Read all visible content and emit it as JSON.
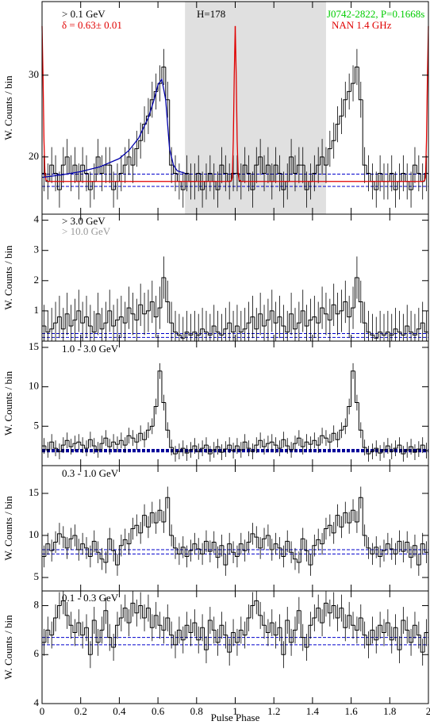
{
  "chart_data": [
    {
      "type": "histogram",
      "ylabel": "W. Counts / bin",
      "xlim": [
        0,
        2
      ],
      "ylim": [
        13,
        39
      ],
      "yticks": [
        20,
        30
      ],
      "xticks": [
        0,
        0.2,
        0.4,
        0.6,
        0.8,
        1,
        1.2,
        1.4,
        1.6,
        1.8,
        2
      ],
      "annotations": [
        {
          "text": "> 0.1 GeV",
          "color": "#000000"
        },
        {
          "text": "δ = 0.63± 0.01",
          "color": "#e00000"
        },
        {
          "text": "H=178",
          "color": "#000000"
        },
        {
          "text": "J0742-2822, P=0.1668s",
          "color": "#00cc00"
        },
        {
          "text": "NAN 1.4 GHz",
          "color": "#e00000"
        }
      ],
      "shaded_region": [
        0.74,
        1.47
      ],
      "color": "#000000",
      "error": 2.2,
      "background_levels": [
        17.9,
        16.4
      ],
      "background_color": "#0000cc",
      "bins": [
        0,
        0.02,
        0.04,
        0.06,
        0.08,
        0.1,
        0.12,
        0.14,
        0.16,
        0.18,
        0.2,
        0.22,
        0.24,
        0.26,
        0.28,
        0.3,
        0.32,
        0.34,
        0.36,
        0.38,
        0.4,
        0.42,
        0.44,
        0.46,
        0.48,
        0.5,
        0.52,
        0.54,
        0.56,
        0.58,
        0.6,
        0.62,
        0.64,
        0.66,
        0.68,
        0.7,
        0.72,
        0.74,
        0.76,
        0.78,
        0.8,
        0.82,
        0.84,
        0.86,
        0.88,
        0.9,
        0.92,
        0.94,
        0.96,
        0.98,
        1
      ],
      "values": [
        18,
        17,
        19,
        18,
        16,
        19,
        20,
        18,
        19,
        17,
        19,
        18,
        16,
        17,
        20,
        18,
        19,
        19,
        16,
        17,
        18,
        19,
        20,
        19,
        21,
        22,
        24,
        25,
        27,
        28,
        29,
        31,
        27,
        19,
        18,
        17,
        16,
        18,
        17,
        17,
        18,
        16,
        17,
        18,
        17,
        16,
        19,
        18,
        17,
        18
      ],
      "radio": {
        "color": "#e00000",
        "x": [
          0,
          0.005,
          0.01,
          0.015,
          0.02,
          0.03,
          0.97,
          0.98,
          0.985,
          0.99,
          0.995,
          1
        ],
        "values": [
          36,
          30,
          22,
          18,
          17.2,
          17,
          17,
          17.1,
          17.5,
          22,
          30,
          36
        ]
      },
      "fit": {
        "color": "#0000aa",
        "x": [
          0,
          0.1,
          0.2,
          0.3,
          0.4,
          0.45,
          0.5,
          0.55,
          0.58,
          0.6,
          0.62,
          0.64,
          0.65,
          0.66,
          0.68,
          0.7,
          0.74
        ],
        "values": [
          17.5,
          17.8,
          18.2,
          18.8,
          19.8,
          20.8,
          22.3,
          24.8,
          27,
          28.8,
          29.5,
          27,
          24,
          21,
          19,
          18.3,
          18
        ]
      }
    },
    {
      "type": "histogram",
      "ylabel": "W. Counts / bin",
      "xlim": [
        0,
        2
      ],
      "ylim": [
        0,
        4.2
      ],
      "yticks": [
        1,
        2,
        3,
        4
      ],
      "xticks": [
        0,
        0.2,
        0.4,
        0.6,
        0.8,
        1,
        1.2,
        1.4,
        1.6,
        1.8,
        2
      ],
      "annotations": [
        {
          "text": "> 3.0 GeV",
          "color": "#000000"
        },
        {
          "text": "> 10.0 GeV",
          "color": "#999999"
        }
      ],
      "color": "#000000",
      "error": 0.7,
      "background_levels": [
        0.25,
        0.12
      ],
      "background_color": "#0000cc",
      "bins": [
        0,
        0.02,
        0.04,
        0.06,
        0.08,
        0.1,
        0.12,
        0.14,
        0.16,
        0.18,
        0.2,
        0.22,
        0.24,
        0.26,
        0.28,
        0.3,
        0.32,
        0.34,
        0.36,
        0.38,
        0.4,
        0.42,
        0.44,
        0.46,
        0.48,
        0.5,
        0.52,
        0.54,
        0.56,
        0.58,
        0.6,
        0.62,
        0.64,
        0.66,
        0.68,
        0.7,
        0.72,
        0.74,
        0.76,
        0.78,
        0.8,
        0.82,
        0.84,
        0.86,
        0.88,
        0.9,
        0.92,
        0.94,
        0.96,
        0.98,
        1
      ],
      "values": [
        0.5,
        0.3,
        0.4,
        0.6,
        0.8,
        0.4,
        0.9,
        0.5,
        0.7,
        1.0,
        0.6,
        0.8,
        0.5,
        0.3,
        0.9,
        0.4,
        0.6,
        1.0,
        0.5,
        0.7,
        0.8,
        0.6,
        1.1,
        0.9,
        0.7,
        1.2,
        0.9,
        1.0,
        1.3,
        0.8,
        1.1,
        2.1,
        1.3,
        0.6,
        0.3,
        0.2,
        0.1,
        0.3,
        0.2,
        0.3,
        0.2,
        0.4,
        0.3,
        0.2,
        0.5,
        0.3,
        0.2,
        0.4,
        0.6,
        0.3
      ]
    },
    {
      "type": "histogram",
      "ylabel": "W. Counts / bin",
      "xlim": [
        0,
        2
      ],
      "ylim": [
        0,
        15.8
      ],
      "yticks": [
        5,
        10,
        15
      ],
      "xticks": [
        0,
        0.2,
        0.4,
        0.6,
        0.8,
        1,
        1.2,
        1.4,
        1.6,
        1.8,
        2
      ],
      "annotations": [
        {
          "text": "1.0 - 3.0 GeV",
          "color": "#000000"
        }
      ],
      "color": "#000000",
      "error": 1.0,
      "background_levels": [
        2.0,
        1.8
      ],
      "background_color": "#000099",
      "bins": [
        0,
        0.02,
        0.04,
        0.06,
        0.08,
        0.1,
        0.12,
        0.14,
        0.16,
        0.18,
        0.2,
        0.22,
        0.24,
        0.26,
        0.28,
        0.3,
        0.32,
        0.34,
        0.36,
        0.38,
        0.4,
        0.42,
        0.44,
        0.46,
        0.48,
        0.5,
        0.52,
        0.54,
        0.56,
        0.58,
        0.6,
        0.62,
        0.64,
        0.66,
        0.68,
        0.7,
        0.72,
        0.74,
        0.76,
        0.78,
        0.8,
        0.82,
        0.84,
        0.86,
        0.88,
        0.9,
        0.92,
        0.94,
        0.96,
        0.98,
        1
      ],
      "values": [
        2.5,
        2.0,
        3.0,
        2.2,
        1.8,
        2.6,
        3.2,
        2.4,
        2.8,
        3.0,
        2.6,
        2.2,
        3.3,
        2.5,
        2.0,
        2.8,
        3.5,
        2.4,
        3.0,
        2.7,
        3.2,
        2.6,
        3.8,
        3.5,
        3.0,
        4.1,
        3.3,
        4.5,
        5.0,
        7.5,
        12.0,
        8.0,
        4.5,
        2.3,
        1.5,
        1.8,
        2.2,
        1.6,
        2.0,
        2.5,
        1.8,
        2.2,
        2.6,
        1.5,
        2.0,
        2.4,
        1.7,
        2.1,
        2.6,
        1.9
      ]
    },
    {
      "type": "histogram",
      "ylabel": "W. Counts / bin",
      "xlim": [
        0,
        2
      ],
      "ylim": [
        3.4,
        18.3
      ],
      "yticks": [
        5,
        10,
        15
      ],
      "xticks": [
        0,
        0.2,
        0.4,
        0.6,
        0.8,
        1,
        1.2,
        1.4,
        1.6,
        1.8,
        2
      ],
      "annotations": [
        {
          "text": "0.3 - 1.0 GeV",
          "color": "#000000"
        }
      ],
      "color": "#000000",
      "error": 1.3,
      "background_levels": [
        8.3,
        7.8
      ],
      "background_color": "#0000cc",
      "bins": [
        0,
        0.02,
        0.04,
        0.06,
        0.08,
        0.1,
        0.12,
        0.14,
        0.16,
        0.18,
        0.2,
        0.22,
        0.24,
        0.26,
        0.28,
        0.3,
        0.32,
        0.34,
        0.36,
        0.38,
        0.4,
        0.42,
        0.44,
        0.46,
        0.48,
        0.5,
        0.52,
        0.54,
        0.56,
        0.58,
        0.6,
        0.62,
        0.64,
        0.66,
        0.68,
        0.7,
        0.72,
        0.74,
        0.76,
        0.78,
        0.8,
        0.82,
        0.84,
        0.86,
        0.88,
        0.9,
        0.92,
        0.94,
        0.96,
        0.98,
        1
      ],
      "values": [
        7.5,
        9.0,
        8.2,
        9.2,
        10.2,
        9.8,
        8.5,
        9.6,
        10.0,
        8.3,
        9.0,
        8.5,
        7.5,
        9.3,
        8.0,
        7.2,
        6.8,
        9.6,
        8.2,
        6.5,
        8.8,
        9.5,
        9.0,
        10.8,
        11.2,
        10.3,
        12.4,
        11.0,
        12.7,
        11.5,
        13.0,
        11.6,
        14.5,
        10.0,
        8.5,
        7.8,
        8.6,
        7.5,
        8.2,
        9.0,
        8.4,
        7.8,
        9.3,
        8.1,
        9.2,
        7.4,
        8.8,
        6.5,
        9.0,
        8.0
      ]
    },
    {
      "type": "histogram",
      "ylabel": "W. Counts / bin",
      "xlabel": "Pulse Phase",
      "xlim": [
        0,
        2
      ],
      "ylim": [
        4,
        8.6
      ],
      "yticks": [
        4,
        6,
        8
      ],
      "xticks": [
        0,
        0.2,
        0.4,
        0.6,
        0.8,
        1,
        1.2,
        1.4,
        1.6,
        1.8,
        2
      ],
      "annotations": [
        {
          "text": "0.1 - 0.3 GeV",
          "color": "#000000"
        }
      ],
      "color": "#000000",
      "error": 0.55,
      "background_levels": [
        6.7,
        6.4
      ],
      "background_color": "#0000cc",
      "bins": [
        0,
        0.02,
        0.04,
        0.06,
        0.08,
        0.1,
        0.12,
        0.14,
        0.16,
        0.18,
        0.2,
        0.22,
        0.24,
        0.26,
        0.28,
        0.3,
        0.32,
        0.34,
        0.36,
        0.38,
        0.4,
        0.42,
        0.44,
        0.46,
        0.48,
        0.5,
        0.52,
        0.54,
        0.56,
        0.58,
        0.6,
        0.62,
        0.64,
        0.66,
        0.68,
        0.7,
        0.72,
        0.74,
        0.76,
        0.78,
        0.8,
        0.82,
        0.84,
        0.86,
        0.88,
        0.9,
        0.92,
        0.94,
        0.96,
        0.98,
        1
      ],
      "values": [
        6.5,
        7.0,
        6.8,
        7.5,
        8.0,
        8.2,
        7.6,
        7.2,
        6.9,
        7.3,
        6.8,
        7.1,
        6.0,
        7.4,
        6.5,
        7.0,
        7.8,
        6.7,
        6.3,
        7.2,
        7.5,
        7.9,
        7.3,
        8.1,
        7.7,
        8.0,
        7.5,
        7.9,
        7.1,
        7.6,
        7.2,
        7.0,
        7.5,
        6.8,
        6.4,
        7.0,
        6.6,
        7.2,
        6.9,
        7.3,
        6.6,
        7.1,
        6.2,
        7.4,
        7.0,
        6.5,
        7.2,
        6.8,
        6.1,
        6.9
      ]
    }
  ]
}
